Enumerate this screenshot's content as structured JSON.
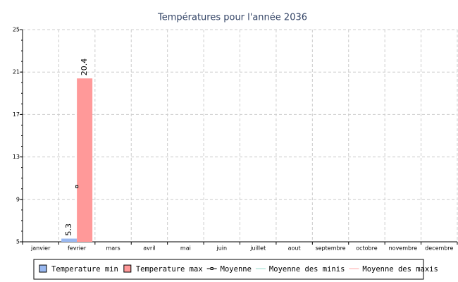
{
  "chart_data": {
    "type": "bar",
    "title": "Températures pour l'année 2036",
    "categories": [
      "janvier",
      "fevrier",
      "mars",
      "avril",
      "mai",
      "juin",
      "juillet",
      "aout",
      "septembre",
      "octobre",
      "novembre",
      "decembre"
    ],
    "series": [
      {
        "name": "Temperature min",
        "type": "bar",
        "color": "#99b8f0",
        "values": [
          null,
          5.3,
          null,
          null,
          null,
          null,
          null,
          null,
          null,
          null,
          null,
          null
        ]
      },
      {
        "name": "Temperature max",
        "type": "bar",
        "color": "#ff9999",
        "values": [
          null,
          20.4,
          null,
          null,
          null,
          null,
          null,
          null,
          null,
          null,
          null,
          null
        ]
      },
      {
        "name": "Moyenne",
        "type": "line",
        "marker": true,
        "color": "#000000",
        "values": [
          null,
          10.2,
          null,
          null,
          null,
          null,
          null,
          null,
          null,
          null,
          null,
          null
        ]
      },
      {
        "name": "Moyenne des minis",
        "type": "line",
        "color": "#99ddcc",
        "values": [
          null,
          null,
          null,
          null,
          null,
          null,
          null,
          null,
          null,
          null,
          null,
          null
        ]
      },
      {
        "name": "Moyenne des maxis",
        "type": "line",
        "color": "#ffaaaa",
        "values": [
          null,
          null,
          null,
          null,
          null,
          null,
          null,
          null,
          null,
          null,
          null,
          null
        ]
      }
    ],
    "ylim": [
      5,
      25
    ],
    "yticks": [
      5,
      9,
      13,
      17,
      21,
      25
    ],
    "grid": true,
    "legend": "bottom"
  }
}
